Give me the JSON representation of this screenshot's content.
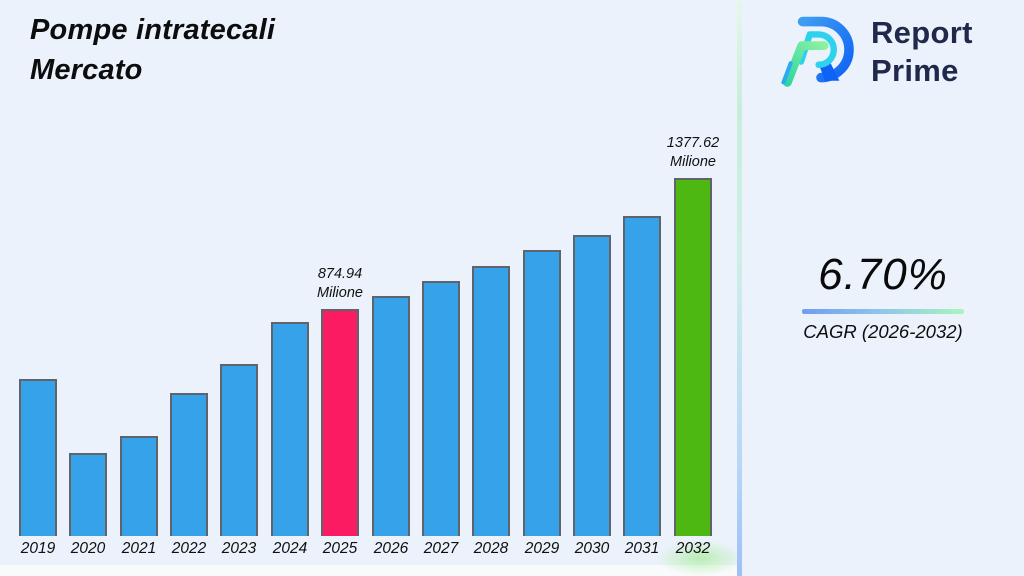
{
  "title": {
    "line1": "Pompe intratecali",
    "line2": "Mercato"
  },
  "logo": {
    "line1": "Report",
    "line2": "Prime",
    "text_color": "#20294c",
    "mark_colors": {
      "outer_blue": "#0e63f4",
      "light_blue": "#3e9df2",
      "cyan": "#2fd2ec",
      "green_light": "#8cf2a0",
      "green_teal": "#2fd6a4"
    }
  },
  "cagr": {
    "value": "6.70%",
    "label": "CAGR (2026-2032)",
    "underline_gradient": [
      "#6e9ef0",
      "#a9f5c0"
    ]
  },
  "background_color": "#ecf2fc",
  "divider_gradient": [
    "#e6f7ec",
    "#9ec0f6"
  ],
  "chart_data": {
    "type": "bar",
    "title": "Pompe intratecali Mercato",
    "xlabel": "",
    "ylabel": "",
    "unit": "Milione",
    "grid": false,
    "legend": "none",
    "ylim": [
      0,
      1450
    ],
    "categories": [
      "2019",
      "2020",
      "2021",
      "2022",
      "2023",
      "2024",
      "2025",
      "2026",
      "2027",
      "2028",
      "2029",
      "2030",
      "2031",
      "2032"
    ],
    "values": [
      605,
      320,
      385,
      550,
      662,
      825,
      874.94,
      922,
      980,
      1038,
      1102,
      1158,
      1232,
      1377.62
    ],
    "bar_color_default": "#36a2ea",
    "bar_border_color": "#5f646b",
    "highlights": [
      {
        "category": "2025",
        "color": "#fb1b62",
        "label_lines": [
          "874.94",
          "Milione"
        ]
      },
      {
        "category": "2032",
        "color": "#4cb811",
        "label_lines": [
          "1377.62",
          "Milione"
        ]
      }
    ]
  }
}
